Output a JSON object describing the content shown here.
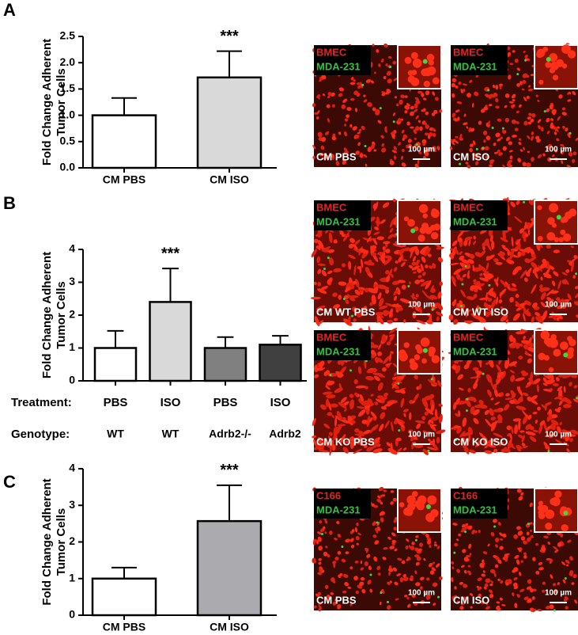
{
  "chart_data": [
    {
      "type": "bar",
      "panel": "A",
      "ylabel": [
        "Fold Change Adherent",
        "Tumor Cells"
      ],
      "categories": [
        "CM PBS",
        "CM ISO"
      ],
      "values": [
        1.0,
        1.72
      ],
      "errors": [
        0.33,
        0.5
      ],
      "colors": [
        "#ffffff",
        "#d9d9d9"
      ],
      "annotation": "***",
      "ylim": [
        0,
        2.5
      ],
      "yticks": [
        {
          "value": 0,
          "label": "0.0"
        },
        0.5,
        {
          "value": 1,
          "label": "1.0"
        },
        1.5,
        {
          "value": 2,
          "label": "2.0"
        },
        2.5
      ]
    },
    {
      "type": "bar",
      "panel": "B",
      "ylabel": [
        "Fold Change Adherent",
        "Tumor Cells"
      ],
      "category_rows": [
        {
          "label": "Treatment:",
          "labels": [
            "PBS",
            "ISO",
            "PBS",
            "ISO"
          ]
        },
        {
          "label": "Genotype:",
          "labels": [
            "WT",
            "WT",
            "Adrb2-/-",
            "Adrb2"
          ]
        }
      ],
      "values": [
        1.0,
        2.4,
        1.0,
        1.1
      ],
      "errors": [
        0.52,
        1.02,
        0.33,
        0.27
      ],
      "colors": [
        "#ffffff",
        "#d9d9d9",
        "#808080",
        "#404040"
      ],
      "annotation": "***",
      "ylim": [
        0,
        4
      ],
      "yticks": [
        0,
        1,
        2,
        3,
        4
      ]
    },
    {
      "type": "bar",
      "panel": "C",
      "ylabel": [
        "Fold Change Adherent",
        "Tumor Cells"
      ],
      "categories": [
        "CM PBS",
        "CM ISO"
      ],
      "values": [
        1.0,
        2.57
      ],
      "errors": [
        0.3,
        0.98
      ],
      "colors": [
        "#ffffff",
        "#ababaf"
      ],
      "annotation": "***",
      "ylim": [
        0,
        4
      ],
      "yticks": [
        0,
        1,
        2,
        3,
        4
      ]
    }
  ],
  "micrographs": [
    [
      {
        "stain1": "BMEC",
        "stain2": "MDA-231",
        "label": "CM PBS",
        "scale": "100 µm"
      },
      {
        "stain1": "BMEC",
        "stain2": "MDA-231",
        "label": "CM ISO",
        "scale": "100 µm"
      }
    ],
    [
      {
        "stain1": "BMEC",
        "stain2": "MDA-231",
        "label": "CM WT PBS",
        "scale": "100 µm"
      },
      {
        "stain1": "BMEC",
        "stain2": "MDA-231",
        "label": "CM WT ISO",
        "scale": "100 µm"
      },
      {
        "stain1": "BMEC",
        "stain2": "MDA-231",
        "label": "CM KO PBS",
        "scale": "100 µm"
      },
      {
        "stain1": "BMEC",
        "stain2": "MDA-231",
        "label": "CM KO ISO",
        "scale": "100 µm"
      }
    ],
    [
      {
        "stain1": "C166",
        "stain2": "MDA-231",
        "label": "CM PBS",
        "scale": "100 µm"
      },
      {
        "stain1": "C166",
        "stain2": "MDA-231",
        "label": "CM ISO",
        "scale": "100 µm"
      }
    ]
  ]
}
